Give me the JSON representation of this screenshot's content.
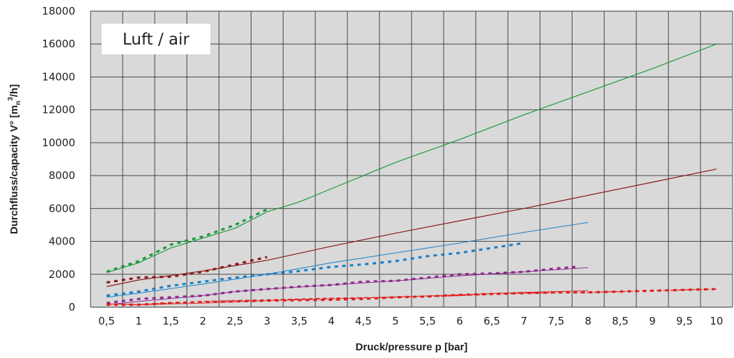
{
  "chart_data": {
    "type": "line",
    "annotation": "Luft / air",
    "xlabel": "Druck/pressure p [bar]",
    "ylabel_main": "Durchfluss/capacity V° [m",
    "ylabel_sub": "n",
    "ylabel_sup": "3",
    "ylabel_end": "/h]",
    "xlim": [
      0.25,
      10.25
    ],
    "ylim": [
      0,
      18000
    ],
    "grid": true,
    "x_ticks": [
      0.5,
      1,
      1.5,
      2,
      2.5,
      3,
      3.5,
      4,
      4.5,
      5,
      5.5,
      6,
      6.5,
      7,
      7.5,
      8,
      8.5,
      9,
      9.5,
      10
    ],
    "x_tick_labels": [
      "0,5",
      "1",
      "1,5",
      "2",
      "2,5",
      "3",
      "3,5",
      "4",
      "4,5",
      "5",
      "5,5",
      "6",
      "6,5",
      "7",
      "7,5",
      "8",
      "8,5",
      "9",
      "9,5",
      "10"
    ],
    "y_ticks": [
      0,
      2000,
      4000,
      6000,
      8000,
      10000,
      12000,
      14000,
      16000,
      18000
    ],
    "y_tick_labels": [
      "0",
      "2000",
      "4000",
      "6000",
      "8000",
      "10000",
      "12000",
      "14000",
      "16000",
      "18000"
    ],
    "colors": {
      "plot_bg": "#d9d9d9",
      "grid": "#333333",
      "green": "#1a9a3c",
      "darkred": "#8b1a1a",
      "blue": "#1a80c8",
      "purple": "#8e2a8e",
      "red": "#e02020"
    },
    "series": [
      {
        "color_key": "green",
        "style": "solid",
        "width": 1.2,
        "points": [
          [
            0.5,
            2100
          ],
          [
            1,
            2700
          ],
          [
            1.5,
            3600
          ],
          [
            2,
            4200
          ],
          [
            2.5,
            4800
          ],
          [
            3,
            5800
          ],
          [
            3.5,
            6400
          ],
          [
            4,
            7200
          ],
          [
            5,
            8800
          ],
          [
            6,
            10200
          ],
          [
            7,
            11700
          ],
          [
            8,
            13100
          ],
          [
            9,
            14500
          ],
          [
            10,
            16000
          ]
        ]
      },
      {
        "color_key": "green",
        "style": "dotted",
        "width": 3.2,
        "points": [
          [
            0.5,
            2150
          ],
          [
            1,
            2800
          ],
          [
            1.5,
            3800
          ],
          [
            2,
            4300
          ],
          [
            2.5,
            5000
          ],
          [
            3,
            5950
          ]
        ]
      },
      {
        "color_key": "darkred",
        "style": "solid",
        "width": 1.2,
        "points": [
          [
            0.5,
            1250
          ],
          [
            1,
            1650
          ],
          [
            2,
            2200
          ],
          [
            3,
            2850
          ],
          [
            4,
            3700
          ],
          [
            5,
            4500
          ],
          [
            6,
            5250
          ],
          [
            7,
            6000
          ],
          [
            8,
            6800
          ],
          [
            9,
            7600
          ],
          [
            10,
            8400
          ]
        ]
      },
      {
        "color_key": "darkred",
        "style": "dotted",
        "width": 3.2,
        "points": [
          [
            0.5,
            1500
          ],
          [
            1,
            1800
          ],
          [
            1.5,
            1850
          ],
          [
            2,
            2150
          ],
          [
            2.5,
            2600
          ],
          [
            3,
            3050
          ]
        ]
      },
      {
        "color_key": "blue",
        "style": "solid",
        "width": 1,
        "points": [
          [
            0.5,
            600
          ],
          [
            1,
            850
          ],
          [
            2,
            1400
          ],
          [
            3,
            2000
          ],
          [
            4,
            2700
          ],
          [
            5,
            3300
          ],
          [
            6,
            3900
          ],
          [
            7,
            4550
          ],
          [
            8,
            5150
          ]
        ]
      },
      {
        "color_key": "blue",
        "style": "dotted",
        "width": 3.2,
        "points": [
          [
            0.5,
            700
          ],
          [
            1,
            950
          ],
          [
            1.5,
            1300
          ],
          [
            2,
            1550
          ],
          [
            2.5,
            1800
          ],
          [
            3,
            2000
          ],
          [
            3.5,
            2200
          ],
          [
            4,
            2450
          ],
          [
            4.5,
            2600
          ],
          [
            5,
            2800
          ],
          [
            5.5,
            3100
          ],
          [
            6,
            3300
          ],
          [
            6.5,
            3600
          ],
          [
            7,
            3900
          ]
        ]
      },
      {
        "color_key": "purple",
        "style": "solid",
        "width": 1,
        "points": [
          [
            0.5,
            150
          ],
          [
            1,
            350
          ],
          [
            2,
            700
          ],
          [
            2.5,
            950
          ],
          [
            3,
            1100
          ],
          [
            4,
            1350
          ],
          [
            5,
            1600
          ],
          [
            6,
            1900
          ],
          [
            7,
            2150
          ],
          [
            8,
            2400
          ]
        ]
      },
      {
        "color_key": "purple",
        "style": "dotted",
        "width": 3.2,
        "points": [
          [
            0.5,
            250
          ],
          [
            1,
            500
          ],
          [
            1.5,
            600
          ],
          [
            2,
            700
          ],
          [
            2.5,
            950
          ],
          [
            3,
            1100
          ],
          [
            3.5,
            1250
          ],
          [
            4,
            1350
          ],
          [
            4.5,
            1550
          ],
          [
            5,
            1600
          ],
          [
            5.5,
            1800
          ],
          [
            6,
            2000
          ],
          [
            6.5,
            2050
          ],
          [
            7,
            2150
          ],
          [
            7.5,
            2350
          ],
          [
            7.8,
            2450
          ]
        ]
      },
      {
        "color_key": "red",
        "style": "solid",
        "width": 1,
        "points": [
          [
            0.5,
            200
          ],
          [
            1,
            150
          ],
          [
            2,
            250
          ],
          [
            3,
            400
          ],
          [
            4,
            500
          ],
          [
            5,
            620
          ],
          [
            6,
            750
          ],
          [
            7,
            900
          ],
          [
            8,
            1000
          ]
        ]
      },
      {
        "color_key": "red",
        "style": "dashed",
        "width": 1.3,
        "points": [
          [
            0.5,
            200
          ],
          [
            1,
            150
          ],
          [
            1.5,
            250
          ],
          [
            2,
            350
          ],
          [
            3,
            450
          ],
          [
            4,
            550
          ],
          [
            5,
            600
          ],
          [
            6,
            700
          ],
          [
            7,
            850
          ],
          [
            8,
            900
          ],
          [
            9,
            1000
          ],
          [
            10,
            1100
          ]
        ]
      },
      {
        "color_key": "red",
        "style": "dotted",
        "width": 3.2,
        "points": [
          [
            0.5,
            150
          ],
          [
            1,
            150
          ],
          [
            1.5,
            250
          ],
          [
            2,
            300
          ],
          [
            2.5,
            350
          ],
          [
            3,
            400
          ],
          [
            4,
            450
          ],
          [
            4.5,
            500
          ],
          [
            5,
            600
          ],
          [
            5.5,
            650
          ],
          [
            6,
            750
          ],
          [
            6.5,
            800
          ],
          [
            7,
            850
          ],
          [
            7.5,
            900
          ],
          [
            8,
            900
          ],
          [
            9,
            1000
          ],
          [
            10,
            1100
          ]
        ]
      }
    ]
  }
}
